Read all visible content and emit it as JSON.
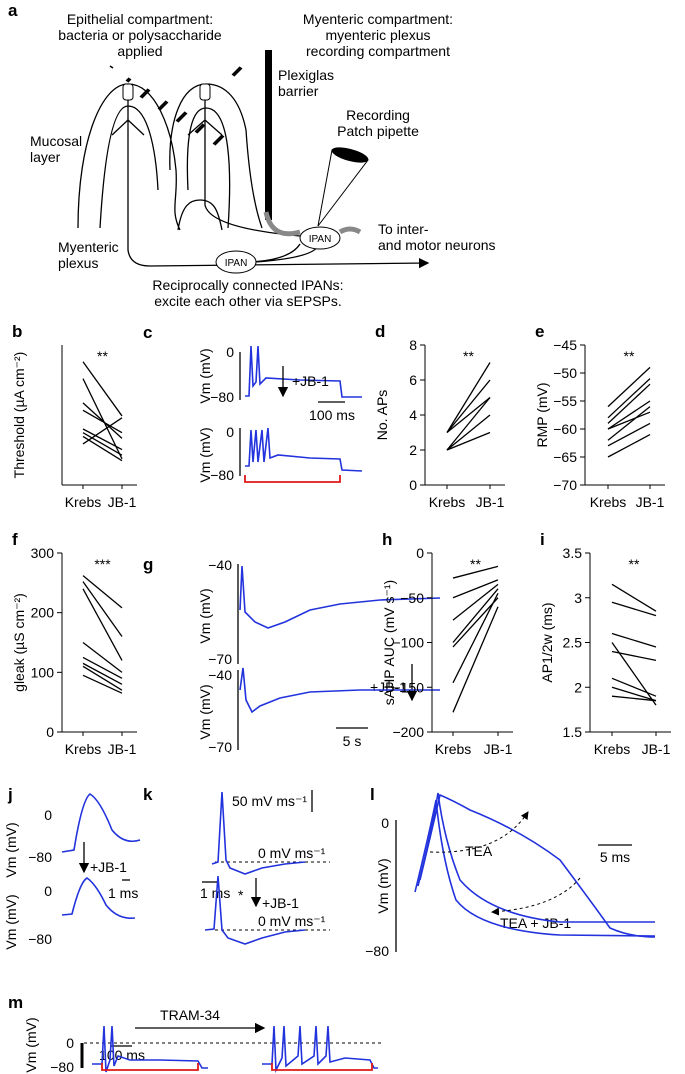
{
  "panel_a": {
    "label": "a",
    "texts": [
      "Epithelial compartment:",
      "bacteria or polysaccharide",
      "applied",
      "Myenteric compartment:",
      "myenteric plexus",
      "recording compartment",
      "Plexiglas",
      "barrier",
      "Recording",
      "Patch pipette",
      "Mucosal",
      "layer",
      "IPAN",
      "IPAN",
      "To inter-",
      "and motor neurons",
      "Myenteric",
      "plexus",
      "Reciprocally connected IPANs:",
      "excite each other via sEPSPs."
    ]
  },
  "chart_data": [
    {
      "type": "line",
      "label": "b",
      "ylabel": "Threshold (µA cm⁻²)",
      "categories": [
        "Krebs",
        "JB-1"
      ],
      "significance": "**",
      "color": "#000000",
      "ylim": [
        0,
        7.5
      ],
      "series": [
        {
          "values": [
            6.6,
            3.7
          ]
        },
        {
          "values": [
            5.7,
            1.4
          ]
        },
        {
          "values": [
            4.4,
            2.5
          ]
        },
        {
          "values": [
            4.0,
            2.8
          ]
        },
        {
          "values": [
            3.0,
            1.9
          ]
        },
        {
          "values": [
            2.8,
            1.6
          ]
        },
        {
          "values": [
            2.6,
            1.3
          ]
        },
        {
          "values": [
            2.2,
            3.6
          ]
        }
      ]
    },
    {
      "type": "line",
      "label": "d",
      "ylabel": "No. APs",
      "categories": [
        "Krebs",
        "JB-1"
      ],
      "significance": "**",
      "color": "#000000",
      "ylim": [
        0,
        8
      ],
      "yticks": [
        0,
        2,
        4,
        6,
        8
      ],
      "series": [
        {
          "values": [
            3,
            7
          ]
        },
        {
          "values": [
            3,
            6
          ]
        },
        {
          "values": [
            3,
            5
          ]
        },
        {
          "values": [
            2,
            5
          ]
        },
        {
          "values": [
            2,
            4
          ]
        },
        {
          "values": [
            2,
            3
          ]
        }
      ]
    },
    {
      "type": "line",
      "label": "e",
      "ylabel": "RMP  (mV)",
      "categories": [
        "Krebs",
        "JB-1"
      ],
      "significance": "**",
      "color": "#000000",
      "ylim": [
        -70,
        -45
      ],
      "yticks": [
        {
          "value": -70,
          "label": "−70"
        },
        {
          "value": -65,
          "label": "−65"
        },
        {
          "value": -60,
          "label": "−60"
        },
        {
          "value": -55,
          "label": "−55"
        },
        {
          "value": -50,
          "label": "−50"
        },
        {
          "value": -45,
          "label": "−45"
        }
      ],
      "series": [
        {
          "values": [
            -56,
            -49
          ]
        },
        {
          "values": [
            -58,
            -51
          ]
        },
        {
          "values": [
            -59,
            -52
          ]
        },
        {
          "values": [
            -60,
            -55
          ]
        },
        {
          "values": [
            -60,
            -57
          ]
        },
        {
          "values": [
            -62,
            -56
          ]
        },
        {
          "values": [
            -63,
            -59
          ]
        },
        {
          "values": [
            -65,
            -61
          ]
        }
      ]
    },
    {
      "type": "line",
      "label": "f",
      "ylabel": "gleak (µS cm⁻²)",
      "categories": [
        "Krebs",
        "JB-1"
      ],
      "significance": "***",
      "color": "#000000",
      "ylim": [
        0,
        300
      ],
      "yticks": [
        0,
        100,
        200,
        300
      ],
      "series": [
        {
          "values": [
            262,
            208
          ]
        },
        {
          "values": [
            252,
            160
          ]
        },
        {
          "values": [
            240,
            120
          ]
        },
        {
          "values": [
            150,
            100
          ]
        },
        {
          "values": [
            125,
            90
          ]
        },
        {
          "values": [
            115,
            80
          ]
        },
        {
          "values": [
            110,
            70
          ]
        },
        {
          "values": [
            95,
            65
          ]
        }
      ]
    },
    {
      "type": "line",
      "label": "h",
      "ylabel": "sAHP  AUC (mV s⁻¹)",
      "categories": [
        "Krebs",
        "JB-1"
      ],
      "significance": "**",
      "color": "#000000",
      "ylim": [
        -200,
        0
      ],
      "yticks": [
        {
          "value": -200,
          "label": "−200"
        },
        {
          "value": -150,
          "label": "−150"
        },
        {
          "value": -100,
          "label": "−100"
        },
        {
          "value": -50,
          "label": "−50"
        },
        0
      ],
      "series": [
        {
          "values": [
            -28,
            -15
          ]
        },
        {
          "values": [
            -50,
            -30
          ]
        },
        {
          "values": [
            -75,
            -35
          ]
        },
        {
          "values": [
            -100,
            -40
          ]
        },
        {
          "values": [
            -105,
            -50
          ]
        },
        {
          "values": [
            -145,
            -45
          ]
        },
        {
          "values": [
            -178,
            -60
          ]
        }
      ]
    },
    {
      "type": "line",
      "label": "i",
      "ylabel": "AP1/2w (ms)",
      "categories": [
        "Krebs",
        "JB-1"
      ],
      "significance": "**",
      "color": "#000000",
      "ylim": [
        1.5,
        3.5
      ],
      "yticks": [
        1.5,
        2.0,
        2.5,
        3.0,
        3.5
      ],
      "series": [
        {
          "values": [
            3.15,
            2.85
          ]
        },
        {
          "values": [
            2.95,
            2.8
          ]
        },
        {
          "values": [
            2.6,
            2.45
          ]
        },
        {
          "values": [
            2.4,
            2.3
          ]
        },
        {
          "values": [
            2.1,
            1.9
          ]
        },
        {
          "values": [
            2.0,
            1.85
          ]
        },
        {
          "values": [
            1.9,
            1.85
          ]
        },
        {
          "values": [
            2.5,
            1.8
          ]
        }
      ]
    }
  ],
  "traces": {
    "c": {
      "label": "c",
      "texts": [
        "0",
        "−80",
        "Vm (mV)",
        "+JB-1",
        "100 ms",
        "0",
        "−80",
        "Vm (mV)"
      ]
    },
    "g": {
      "label": "g",
      "texts": [
        "−40",
        "−70",
        "Vm (mV)",
        "+JB-1",
        "−40",
        "−70",
        "Vm (mV)",
        "5 s"
      ]
    },
    "j": {
      "label": "j",
      "texts": [
        "0",
        "−80",
        "Vm (mV)",
        "+JB-1",
        "1 ms",
        "0",
        "−80",
        "Vm (mV)"
      ]
    },
    "k": {
      "label": "k",
      "texts": [
        "50 mV ms⁻¹",
        "0 mV ms⁻¹",
        "1 ms",
        "*",
        "+JB-1",
        "0 mV ms⁻¹"
      ]
    },
    "l": {
      "label": "l",
      "texts": [
        "0",
        "TEA",
        "5 ms",
        "Vm (mV)",
        "TEA + JB-1",
        "−80"
      ]
    },
    "m": {
      "label": "m",
      "texts": [
        "TRAM-34",
        "0",
        "Vm (mV)",
        "100 ms",
        "−80"
      ]
    }
  }
}
